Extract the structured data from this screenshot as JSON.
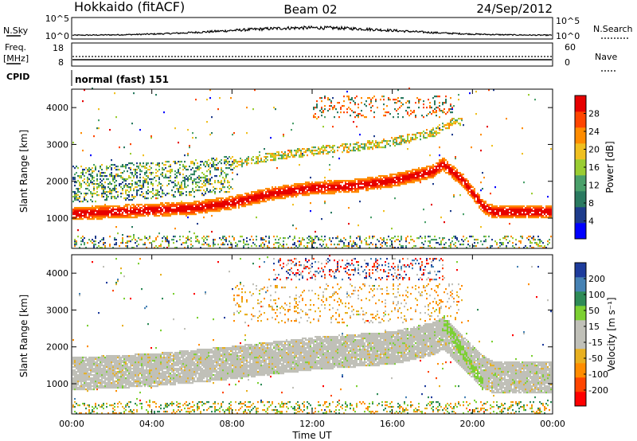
{
  "header": {
    "station": "Hokkaido (fitACF)",
    "beam": "Beam 02",
    "date": "24/Sep/2012"
  },
  "strip_panels": {
    "nsky_label": "N.Sky",
    "nsearch_label": "N.Search",
    "noise_ticks_left": [
      "10^5",
      "10^0"
    ],
    "noise_ticks_right": [
      "10^5",
      "10^0"
    ],
    "freq_label_1": "Freq.",
    "freq_label_2": "[MHz]",
    "freq_ticks": [
      "18",
      "8"
    ],
    "nave_label": "Nave",
    "nave_ticks": [
      "60",
      "0"
    ],
    "cpid_label": "CPID",
    "cpid_text": "normal (fast) 151"
  },
  "colors": {
    "power_scale": [
      "#0000ff",
      "#1e3c8c",
      "#2a7a60",
      "#4aa06a",
      "#9acd32",
      "#f0c020",
      "#ff8c00",
      "#ff4500",
      "#e60000"
    ],
    "velocity_scale": [
      "#ff0000",
      "#ff4500",
      "#ff8c00",
      "#e8b020",
      "#c0c0b8",
      "#c0c0b8",
      "#7cd032",
      "#2e8b57",
      "#4682b4",
      "#1e3c9c"
    ]
  },
  "chart_data": [
    {
      "type": "heatmap",
      "name": "power",
      "ylabel": "Slant Range [km]",
      "yticks": [
        1000,
        2000,
        3000,
        4000
      ],
      "ylim": [
        180,
        4500
      ],
      "xlim": [
        0,
        24
      ],
      "colorbar": {
        "label": "Power [dB]",
        "ticks": [
          "28",
          "24",
          "20",
          "16",
          "12",
          "8",
          "4"
        ],
        "range": [
          0,
          32
        ]
      },
      "features": [
        {
          "name": "main echo band",
          "x": [
            0,
            2,
            4,
            6,
            8,
            10,
            12,
            14,
            16,
            18,
            18.5,
            19.5,
            20.5,
            21,
            24
          ],
          "y": [
            1100,
            1150,
            1200,
            1250,
            1400,
            1650,
            1800,
            1850,
            2000,
            2250,
            2450,
            2000,
            1300,
            1150,
            1150
          ]
        },
        {
          "name": "upper echo band",
          "x": [
            8,
            10,
            12,
            14,
            16,
            18,
            19
          ],
          "y": [
            2450,
            2650,
            2800,
            2900,
            3050,
            3300,
            3600
          ]
        }
      ]
    },
    {
      "type": "heatmap",
      "name": "velocity",
      "ylabel": "Slant Range [km]",
      "yticks": [
        1000,
        2000,
        3000,
        4000
      ],
      "ylim": [
        180,
        4500
      ],
      "xlim": [
        0,
        24
      ],
      "xticks": [
        "00:00",
        "04:00",
        "08:00",
        "12:00",
        "16:00",
        "20:00",
        "00:00"
      ],
      "xlabel": "Time UT",
      "colorbar": {
        "label": "Velocity [m s⁻¹]",
        "ticks": [
          "200",
          "100",
          "50",
          "15",
          "-15",
          "-50",
          "-100",
          "-200"
        ],
        "range": [
          -250,
          250
        ]
      },
      "features": [
        {
          "name": "ground scatter band",
          "x": [
            0,
            4,
            8,
            12,
            16,
            18,
            18.5,
            20.5,
            21,
            24
          ],
          "y": [
            1250,
            1350,
            1550,
            1800,
            1950,
            2200,
            2350,
            1300,
            1150,
            1150
          ]
        },
        {
          "name": "positive velocity streak",
          "x": [
            18.5,
            20.5
          ],
          "y": [
            2700,
            950
          ]
        }
      ]
    }
  ]
}
